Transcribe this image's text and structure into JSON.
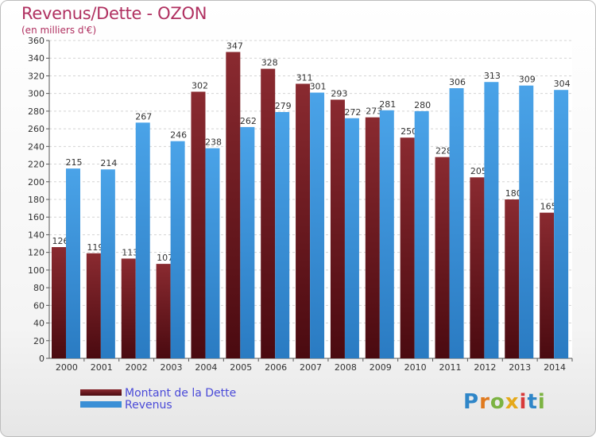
{
  "title": "Revenus/Dette - OZON",
  "subtitle": "(en milliers d'€)",
  "legend": {
    "dette": "Montant de la Dette",
    "revenus": "Revenus"
  },
  "logo_text": "Proxiti",
  "colors": {
    "dette": "#6b1a1f",
    "revenus": "#3a8fd6",
    "title": "#b03060"
  },
  "chart_data": {
    "type": "bar",
    "title": "Revenus/Dette - OZON",
    "categories": [
      "2000",
      "2001",
      "2002",
      "2003",
      "2004",
      "2005",
      "2006",
      "2007",
      "2008",
      "2009",
      "2010",
      "2011",
      "2012",
      "2013",
      "2014"
    ],
    "series": [
      {
        "name": "Montant de la Dette",
        "values": [
          126,
          119,
          113,
          107,
          302,
          347,
          328,
          311,
          293,
          273,
          250,
          228,
          205,
          180,
          165
        ]
      },
      {
        "name": "Revenus",
        "values": [
          215,
          214,
          267,
          246,
          238,
          262,
          279,
          301,
          272,
          281,
          280,
          306,
          313,
          309,
          304
        ]
      }
    ],
    "ylim": [
      0,
      360
    ],
    "yticks": [
      0,
      20,
      40,
      60,
      80,
      100,
      120,
      140,
      160,
      180,
      200,
      220,
      240,
      260,
      280,
      300,
      320,
      340,
      360
    ],
    "grid": true,
    "legend_position": "bottom-left"
  }
}
